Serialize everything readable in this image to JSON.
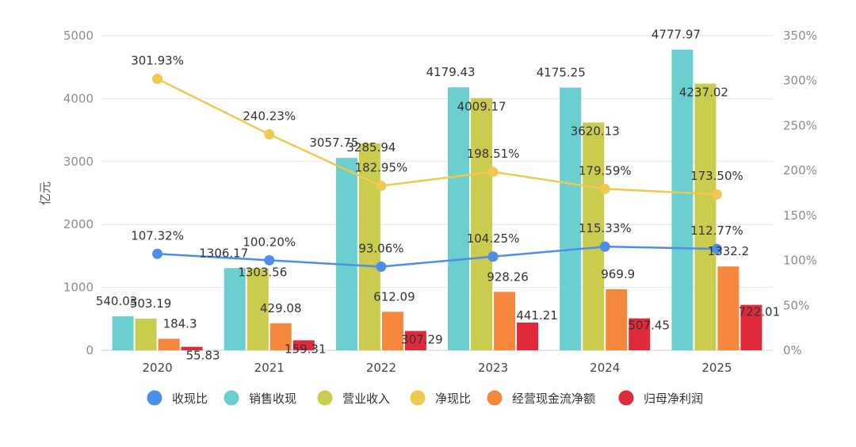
{
  "chart_data": {
    "type": "bar",
    "title": "",
    "xlabel": "",
    "ylabel": "亿元",
    "ylim": [
      0,
      5000
    ],
    "y2lim": [
      0,
      350
    ],
    "yticks": [
      "0",
      "1000",
      "2000",
      "3000",
      "4000",
      "5000"
    ],
    "y2ticks": [
      "0%",
      "50%",
      "100%",
      "150%",
      "200%",
      "250%",
      "300%",
      "350%"
    ],
    "grid": true,
    "legend_position": "bottom",
    "categories": [
      "2020",
      "2021",
      "2022",
      "2023",
      "2024",
      "2025"
    ],
    "series": [
      {
        "name": "销售收现",
        "kind": "bar",
        "color": "#6ccfcf",
        "values": [
          540.03,
          1306.17,
          3057.75,
          4179.43,
          4175.25,
          4777.97
        ],
        "labels": [
          "540.03",
          "1306.17",
          "3057.75",
          "4179.43",
          "4175.25",
          "4777.97"
        ]
      },
      {
        "name": "营业收入",
        "kind": "bar",
        "color": "#c9cc4e",
        "values": [
          503.19,
          1303.56,
          3285.94,
          4009.17,
          3620.13,
          4237.02
        ],
        "labels": [
          "503.19",
          "1303.56",
          "3285.94",
          "4009.17",
          "3620.13",
          "4237.02"
        ]
      },
      {
        "name": "经营现金流净额",
        "kind": "bar",
        "color": "#f5883c",
        "values": [
          184.3,
          429.08,
          612.09,
          928.26,
          969.9,
          1332.2
        ],
        "labels": [
          "184.3",
          "429.08",
          "612.09",
          "928.26",
          "969.9",
          "1332.2"
        ]
      },
      {
        "name": "归母净利润",
        "kind": "bar",
        "color": "#e1293c",
        "values": [
          55.83,
          159.31,
          307.29,
          441.21,
          507.45,
          722.01
        ],
        "labels": [
          "55.83",
          "159.31",
          "307.29",
          "441.21",
          "507.45",
          "722.01"
        ]
      },
      {
        "name": "收现比",
        "kind": "line",
        "axis": "right",
        "color": "#4d8fe8",
        "values": [
          107.32,
          100.2,
          93.06,
          104.25,
          115.33,
          112.77
        ],
        "labels": [
          "107.32%",
          "100.20%",
          "93.06%",
          "104.25%",
          "115.33%",
          "112.77%"
        ]
      },
      {
        "name": "净现比",
        "kind": "line",
        "axis": "right",
        "color": "#f0c94e",
        "values": [
          301.93,
          240.23,
          182.95,
          198.51,
          179.59,
          173.5
        ],
        "labels": [
          "301.93%",
          "240.23%",
          "182.95%",
          "198.51%",
          "179.59%",
          "173.50%"
        ]
      }
    ],
    "legend": [
      "收现比",
      "销售收现",
      "营业收入",
      "净现比",
      "经营现金流净额",
      "归母净利润"
    ]
  }
}
